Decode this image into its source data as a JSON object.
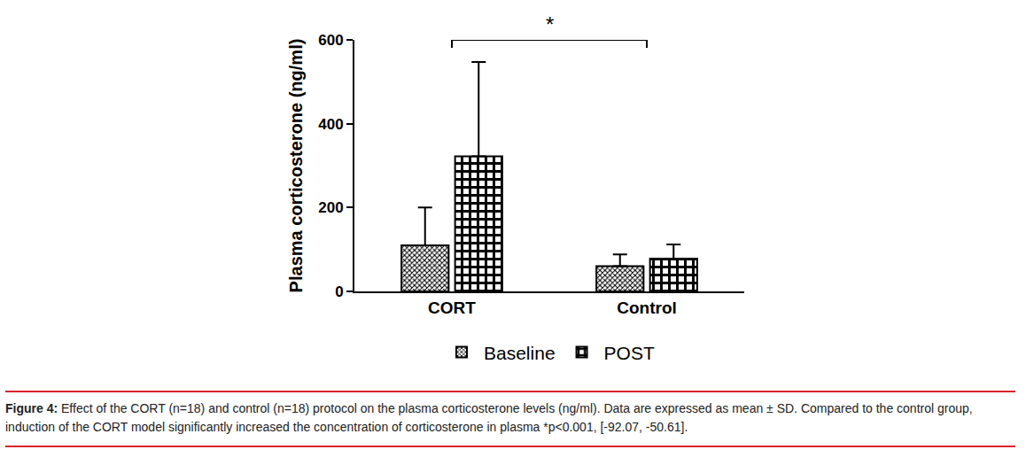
{
  "chart_data": {
    "type": "bar",
    "y_label": "Plasma corticosterone (ng/ml)",
    "categories": [
      "CORT",
      "Control"
    ],
    "series": [
      {
        "name": "Baseline",
        "color": "#000000",
        "marker": "dense",
        "values": [
          110,
          60
        ],
        "error": [
          90,
          28
        ]
      },
      {
        "name": "POST",
        "color": "#000000",
        "marker": "checker",
        "values": [
          322,
          78
        ],
        "error": [
          225,
          34
        ]
      }
    ],
    "ylim": [
      0,
      600
    ],
    "yticks": [
      0,
      200,
      400,
      600
    ],
    "grid": false,
    "legend": "bottom",
    "annotations": [
      {
        "text": "*",
        "from": "CORT",
        "to": "Control",
        "y": 600
      }
    ]
  },
  "caption": {
    "label": "Figure 4:",
    "text": "Effect of the CORT (n=18) and control (n=18) protocol on the plasma corticosterone levels (ng/ml). Data are expressed as mean ± SD. Compared to the control group, induction of the CORT model significantly increased the concentration of corticosterone in plasma *p<0.001, [-92.07, -50.61]."
  }
}
